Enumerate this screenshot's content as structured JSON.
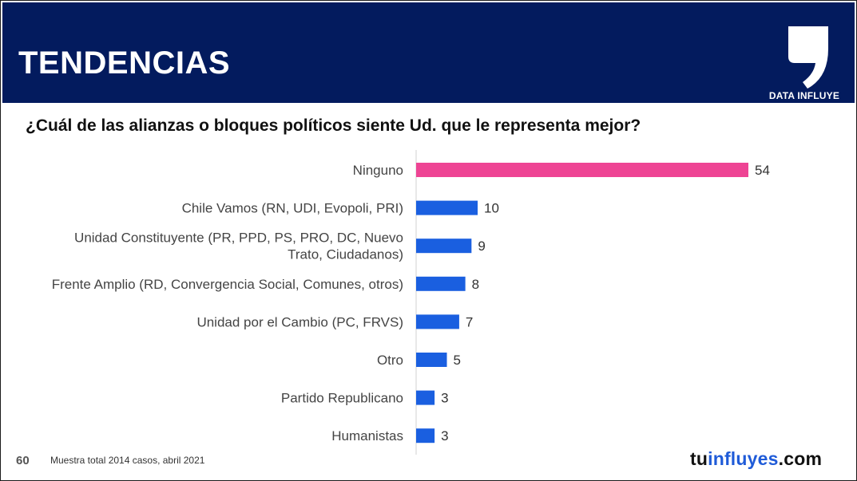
{
  "header": {
    "title": "TENDENCIAS",
    "logo_label": "DATA INFLUYE",
    "colors": {
      "background": "#031b5e",
      "text": "#ffffff"
    }
  },
  "question": "¿Cuál de las alianzas o bloques políticos siente Ud. que le representa mejor?",
  "chart_data": {
    "type": "bar",
    "orientation": "horizontal",
    "categories": [
      [
        "Ninguno"
      ],
      [
        "Chile Vamos (RN, UDI, Evopoli, PRI)"
      ],
      [
        "Unidad Constituyente (PR, PPD, PS, PRO, DC, Nuevo",
        "Trato, Ciudadanos)"
      ],
      [
        "Frente Amplio (RD, Convergencia Social, Comunes, otros)"
      ],
      [
        "Unidad por el Cambio (PC, FRVS)"
      ],
      [
        "Otro"
      ],
      [
        "Partido Republicano"
      ],
      [
        "Humanistas"
      ]
    ],
    "values": [
      54,
      10,
      9,
      8,
      7,
      5,
      3,
      3
    ],
    "bar_colors": [
      "#ee4494",
      "#1a5fe0",
      "#1a5fe0",
      "#1a5fe0",
      "#1a5fe0",
      "#1a5fe0",
      "#1a5fe0",
      "#1a5fe0"
    ],
    "xlim": [
      0,
      60
    ],
    "grid": false,
    "data_labels": true
  },
  "footer": {
    "page_number": "60",
    "note": "Muestra total 2014 casos,  abril 2021",
    "brand": {
      "part1": "tu",
      "part2": "influyes",
      "part3": ".com"
    },
    "brand_colors": {
      "dark": "#111111",
      "accent": "#1f5bd8"
    }
  }
}
